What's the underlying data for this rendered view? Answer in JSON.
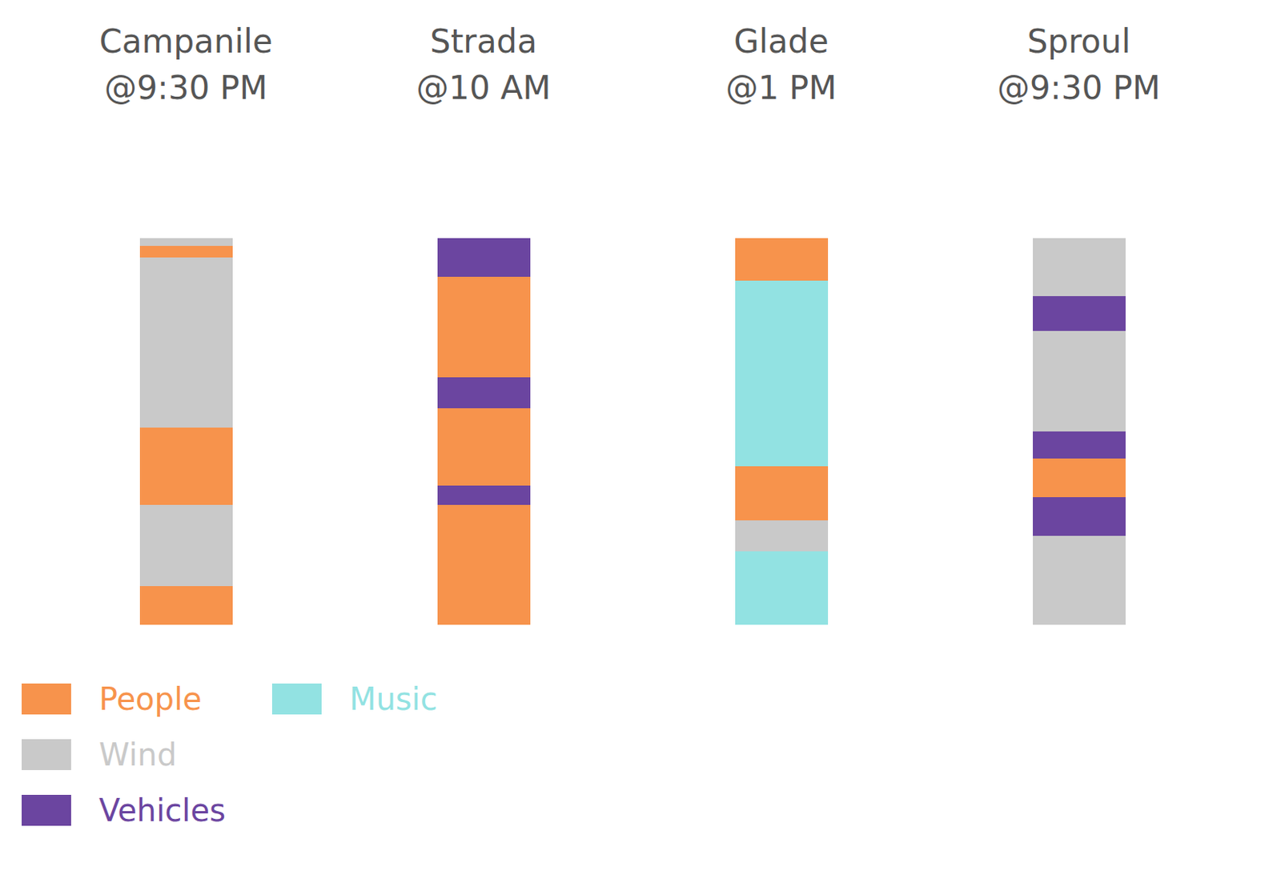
{
  "chart_data": {
    "type": "bar",
    "stacked": true,
    "tick_labels": "x",
    "legend": "lower left",
    "categories": [
      "Campanile @9:30 PM",
      "Strada @10 AM",
      "Glade @1 PM",
      "Sproul @9:30 PM"
    ],
    "ylim": [
      0,
      100
    ],
    "series": [
      {
        "name": "People",
        "color": "#f7934c"
      },
      {
        "name": "Wind",
        "color": "#c9c9c9"
      },
      {
        "name": "Vehicles",
        "color": "#6b45a0"
      },
      {
        "name": "Music",
        "color": "#92e2e2"
      }
    ],
    "stacks": [
      [
        {
          "name": "People",
          "value": 10
        },
        {
          "name": "Wind",
          "value": 21
        },
        {
          "name": "People",
          "value": 20
        },
        {
          "name": "Wind",
          "value": 44
        },
        {
          "name": "People",
          "value": 3
        },
        {
          "name": "Wind",
          "value": 2
        }
      ],
      [
        {
          "name": "People",
          "value": 31
        },
        {
          "name": "Vehicles",
          "value": 5
        },
        {
          "name": "People",
          "value": 20
        },
        {
          "name": "Vehicles",
          "value": 8
        },
        {
          "name": "People",
          "value": 26
        },
        {
          "name": "Vehicles",
          "value": 10
        }
      ],
      [
        {
          "name": "Music",
          "value": 19
        },
        {
          "name": "Wind",
          "value": 8
        },
        {
          "name": "People",
          "value": 14
        },
        {
          "name": "Music",
          "value": 48
        },
        {
          "name": "People",
          "value": 11
        }
      ],
      [
        {
          "name": "Wind",
          "value": 23
        },
        {
          "name": "Vehicles",
          "value": 10
        },
        {
          "name": "People",
          "value": 10
        },
        {
          "name": "Vehicles",
          "value": 7
        },
        {
          "name": "Wind",
          "value": 26
        },
        {
          "name": "Vehicles",
          "value": 9
        },
        {
          "name": "Wind",
          "value": 15
        }
      ]
    ]
  }
}
